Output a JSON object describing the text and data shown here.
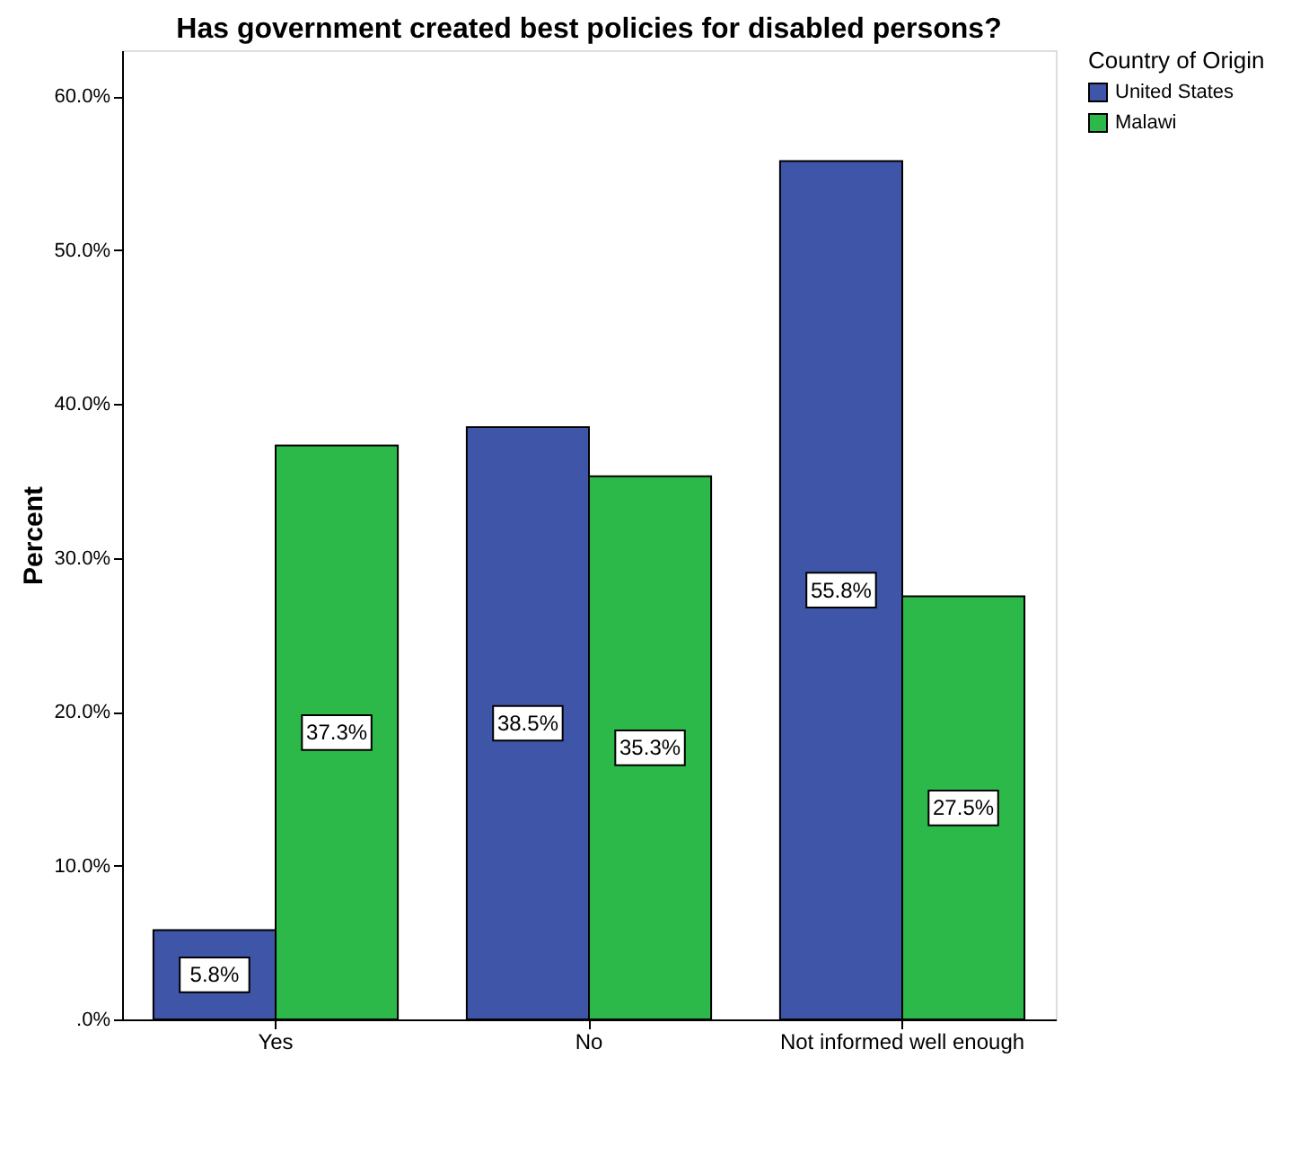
{
  "chart_data": {
    "type": "bar",
    "title": "Has government created best policies for disabled persons?",
    "ylabel": "Percent",
    "legend_title": "Country of Origin",
    "categories": [
      "Yes",
      "No",
      "Not informed well enough"
    ],
    "series": [
      {
        "name": "United States",
        "color": "#3f56a8",
        "values": [
          5.8,
          38.5,
          55.8
        ],
        "value_labels": [
          "5.8%",
          "38.5%",
          "55.8%"
        ]
      },
      {
        "name": "Malawi",
        "color": "#2db84a",
        "values": [
          37.3,
          35.3,
          27.5
        ],
        "value_labels": [
          "37.3%",
          "35.3%",
          "27.5%"
        ]
      }
    ],
    "ylim": [
      0,
      63
    ],
    "yticks": [
      {
        "value": 0,
        "label": ".0%"
      },
      {
        "value": 10,
        "label": "10.0%"
      },
      {
        "value": 20,
        "label": "20.0%"
      },
      {
        "value": 30,
        "label": "30.0%"
      },
      {
        "value": 40,
        "label": "40.0%"
      },
      {
        "value": 50,
        "label": "50.0%"
      },
      {
        "value": 60,
        "label": "60.0%"
      }
    ],
    "grid": false,
    "legend": "top right"
  }
}
